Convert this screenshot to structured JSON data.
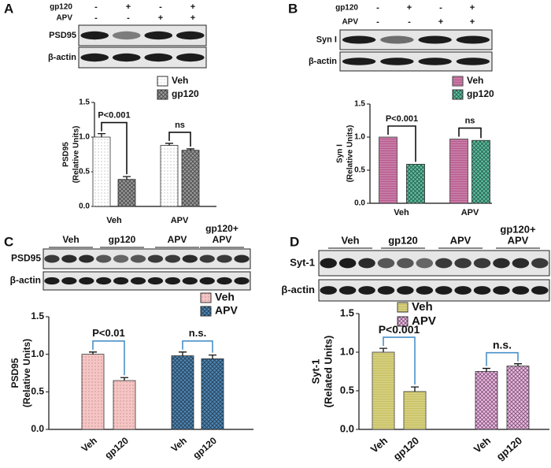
{
  "chart_data": [
    {
      "type": "bar",
      "panel": "A",
      "ylabel": [
        "PSD95",
        "(Relative Units)"
      ],
      "categories": [
        "Veh",
        "APV"
      ],
      "series": [
        {
          "name": "Veh",
          "color": "#ffffff",
          "values": [
            1.0,
            0.88
          ],
          "errors": [
            0.05,
            0.03
          ]
        },
        {
          "name": "gp120",
          "color": "#9a9a9a",
          "values": [
            0.39,
            0.81
          ],
          "errors": [
            0.04,
            0.02
          ]
        }
      ],
      "ylim": [
        0,
        1.5
      ],
      "yticks": [
        {
          "value": 0,
          "label": "0.0"
        },
        {
          "value": 0.5,
          "label": "0.5"
        },
        {
          "value": 1,
          "label": "1.0"
        },
        {
          "value": 1.5,
          "label": "1.5"
        }
      ],
      "annotations": [
        "P<0.001",
        "ns"
      ],
      "annotation_color": "#111111"
    },
    {
      "type": "bar",
      "panel": "B",
      "ylabel": [
        "Syn I",
        "(Relative Units)"
      ],
      "categories": [
        "Veh",
        "APV"
      ],
      "series": [
        {
          "name": "Veh",
          "color": "#b85a8e",
          "values": [
            1.0,
            0.97
          ]
        },
        {
          "name": "gp120",
          "color": "#5cc0a0",
          "values": [
            0.59,
            0.95
          ]
        }
      ],
      "ylim": [
        0,
        1.5
      ],
      "yticks": [
        {
          "value": 0,
          "label": "0.0"
        },
        {
          "value": 0.5,
          "label": "0.5"
        },
        {
          "value": 1,
          "label": "1.0"
        },
        {
          "value": 1.5,
          "label": "1.5"
        }
      ],
      "annotations": [
        "P<0.001",
        "ns"
      ],
      "annotation_color": "#111111"
    },
    {
      "type": "grouped-bar",
      "panel": "C",
      "ylabel": [
        "PSD95",
        "(Relative Units)"
      ],
      "categories": [
        "Veh",
        "gp120"
      ],
      "series": [
        {
          "name": "Veh",
          "color": "#f7c4c4",
          "values": [
            1.0,
            0.65
          ],
          "errors": [
            0.03,
            0.04
          ]
        },
        {
          "name": "APV",
          "color": "#4f86b4",
          "values": [
            0.98,
            0.94
          ],
          "errors": [
            0.05,
            0.05
          ]
        }
      ],
      "ylim": [
        0,
        1.5
      ],
      "yticks": [
        {
          "value": 0,
          "label": "0.0"
        },
        {
          "value": 0.5,
          "label": "0.5"
        },
        {
          "value": 1,
          "label": "1.0"
        },
        {
          "value": 1.5,
          "label": "1.5"
        }
      ],
      "annotations": [
        "P<0.01",
        "n.s."
      ],
      "annotation_color": "#4a90c8"
    },
    {
      "type": "grouped-bar",
      "panel": "D",
      "ylabel": [
        "Syt-1",
        "(Related Units)"
      ],
      "categories": [
        "Veh",
        "gp120"
      ],
      "series": [
        {
          "name": "Veh",
          "color": "#c9c160",
          "values": [
            1.0,
            0.49
          ],
          "errors": [
            0.05,
            0.06
          ]
        },
        {
          "name": "APV",
          "color": "#f5b8ea",
          "values": [
            0.75,
            0.82
          ],
          "errors": [
            0.04,
            0.03
          ]
        }
      ],
      "ylim": [
        0,
        1.5
      ],
      "yticks": [
        {
          "value": 0,
          "label": "0.0"
        },
        {
          "value": 0.5,
          "label": "0.5"
        },
        {
          "value": 1,
          "label": "1.0"
        },
        {
          "value": 1.5,
          "label": "1.5"
        }
      ],
      "annotations": [
        "P<0.001",
        "n.s."
      ],
      "annotation_color": "#4a90c8"
    }
  ],
  "blots": [
    {
      "rows": [
        {
          "label": "gp120",
          "signs": [
            "-",
            "+",
            "-",
            "+"
          ]
        },
        {
          "label": "APV",
          "signs": [
            "-",
            "-",
            "+",
            "+"
          ]
        }
      ],
      "bands": [
        "PSD95",
        "β-actin"
      ]
    },
    {
      "rows": [
        {
          "label": "gp120",
          "signs": [
            "-",
            "+",
            "-",
            "+"
          ]
        },
        {
          "label": "APV",
          "signs": [
            "-",
            "-",
            "+",
            "+"
          ]
        }
      ],
      "bands": [
        "Syn I",
        "β-actin"
      ]
    },
    {
      "lanes": [
        "Veh",
        "gp120",
        "APV",
        [
          "gp120+",
          "APV"
        ]
      ],
      "bands": [
        "PSD95",
        "β-actin"
      ]
    },
    {
      "lanes": [
        "Veh",
        "gp120",
        "APV",
        [
          "gp120+",
          "APV"
        ]
      ],
      "bands": [
        "Syt-1",
        "β-actin"
      ]
    }
  ]
}
